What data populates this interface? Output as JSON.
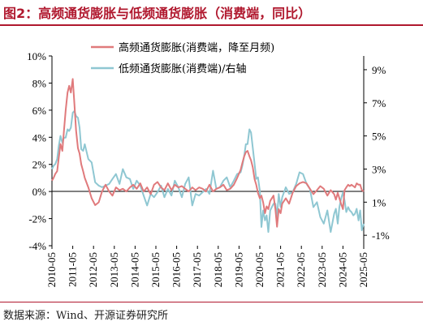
{
  "header": {
    "title": "图2：高频通货膨胀与低频通货膨胀（消费端，同比）"
  },
  "footer": {
    "source": "数据来源：Wind、开源证券研究所"
  },
  "colors": {
    "high_freq": "#e07a7c",
    "low_freq": "#8fc7d2",
    "accent": "#b0182e"
  },
  "chart_data": {
    "type": "line",
    "title": "",
    "xlabel": "",
    "ylabel": "",
    "x_tick_labels": [
      "2010-05",
      "2011-05",
      "2012-05",
      "2013-05",
      "2014-05",
      "2015-05",
      "2016-05",
      "2017-05",
      "2018-05",
      "2019-05",
      "2020-05",
      "2021-05",
      "2022-05",
      "2023-05",
      "2024-05",
      "2025-05"
    ],
    "left_axis": {
      "ticks": [
        10,
        8,
        6,
        4,
        2,
        0,
        -2,
        -4
      ],
      "labels": [
        "10%",
        "8%",
        "6%",
        "4%",
        "2%",
        "0%",
        "-2%",
        "-4%"
      ],
      "ylim": [
        -4,
        10
      ]
    },
    "right_axis": {
      "ticks": [
        9,
        7,
        5,
        3,
        1,
        -1
      ],
      "labels": [
        "9%",
        "7%",
        "5%",
        "3%",
        "1%",
        "-1%"
      ],
      "ylim": [
        -1.63,
        9.83
      ]
    },
    "legend": {
      "placement": "top-right"
    },
    "series": [
      {
        "name": "高频通货膨胀(消费端，降至月频)",
        "axis": "left",
        "x": [
          2010.42,
          2010.5,
          2010.58,
          2010.67,
          2010.75,
          2010.83,
          2010.92,
          2011.0,
          2011.08,
          2011.17,
          2011.25,
          2011.33,
          2011.42,
          2011.5,
          2011.58,
          2011.67,
          2011.75,
          2011.83,
          2011.92,
          2012.0,
          2012.17,
          2012.33,
          2012.5,
          2012.67,
          2012.83,
          2013.0,
          2013.17,
          2013.33,
          2013.5,
          2013.67,
          2013.83,
          2014.0,
          2014.17,
          2014.33,
          2014.5,
          2014.67,
          2014.83,
          2015.0,
          2015.17,
          2015.33,
          2015.5,
          2015.67,
          2015.83,
          2016.0,
          2016.17,
          2016.33,
          2016.5,
          2016.67,
          2016.83,
          2017.0,
          2017.17,
          2017.33,
          2017.5,
          2017.67,
          2017.83,
          2018.0,
          2018.17,
          2018.33,
          2018.5,
          2018.67,
          2018.83,
          2019.0,
          2019.17,
          2019.33,
          2019.5,
          2019.58,
          2019.67,
          2019.75,
          2019.83,
          2019.92,
          2020.0,
          2020.08,
          2020.17,
          2020.25,
          2020.33,
          2020.42,
          2020.5,
          2020.58,
          2020.67,
          2020.75,
          2020.83,
          2020.92,
          2021.0,
          2021.08,
          2021.17,
          2021.25,
          2021.33,
          2021.42,
          2021.5,
          2021.67,
          2021.83,
          2022.0,
          2022.17,
          2022.33,
          2022.5,
          2022.67,
          2022.83,
          2023.0,
          2023.17,
          2023.33,
          2023.5,
          2023.67,
          2023.83,
          2024.0,
          2024.08,
          2024.17,
          2024.25,
          2024.33,
          2024.42,
          2024.5,
          2024.58,
          2024.67,
          2024.75,
          2024.83,
          2024.92,
          2025.0,
          2025.08,
          2025.17,
          2025.25,
          2025.33,
          2025.42
        ],
        "values": [
          0.8,
          1.0,
          1.3,
          1.5,
          2.5,
          3.5,
          3.0,
          4.5,
          6.0,
          7.3,
          7.8,
          7.3,
          8.3,
          6.5,
          4.5,
          3.2,
          2.8,
          2.0,
          1.5,
          1.0,
          0.3,
          -0.5,
          -1.0,
          -0.8,
          0.0,
          0.5,
          0.0,
          -0.3,
          0.3,
          0.1,
          0.2,
          0.0,
          0.3,
          0.5,
          0.2,
          0.6,
          0.0,
          0.3,
          -0.2,
          0.5,
          0.7,
          0.3,
          0.1,
          0.6,
          0.1,
          0.5,
          0.3,
          0.4,
          0.2,
          0.0,
          0.3,
          0.1,
          0.3,
          0.2,
          0.0,
          0.5,
          0.0,
          0.2,
          0.3,
          0.5,
          0.1,
          0.2,
          0.5,
          1.0,
          1.6,
          2.1,
          2.6,
          2.9,
          3.0,
          2.6,
          2.3,
          1.8,
          0.9,
          0.5,
          -0.1,
          -0.5,
          -0.3,
          -0.8,
          -1.6,
          -1.1,
          -1.3,
          -0.7,
          -0.5,
          -0.3,
          -1.3,
          -2.6,
          -1.3,
          -1.6,
          -0.9,
          -0.5,
          -0.9,
          -0.1,
          0.4,
          0.6,
          0.7,
          0.6,
          0.2,
          -0.2,
          0.1,
          0.4,
          0.2,
          -0.3,
          0.1,
          -0.2,
          -0.6,
          -0.1,
          -0.5,
          -0.9,
          -1.3,
          0.1,
          0.3,
          0.5,
          0.4,
          0.5,
          0.4,
          0.3,
          0.6,
          0.5,
          0.5,
          0.1,
          0.0
        ]
      },
      {
        "name": "低频通货膨胀(消费端)/右轴",
        "axis": "right",
        "x": [
          2010.42,
          2010.5,
          2010.58,
          2010.67,
          2010.75,
          2010.83,
          2010.92,
          2011.0,
          2011.08,
          2011.17,
          2011.25,
          2011.33,
          2011.42,
          2011.5,
          2011.58,
          2011.67,
          2011.75,
          2011.83,
          2011.92,
          2012.0,
          2012.17,
          2012.33,
          2012.5,
          2012.67,
          2012.83,
          2013.0,
          2013.17,
          2013.33,
          2013.5,
          2013.67,
          2013.83,
          2014.0,
          2014.17,
          2014.33,
          2014.5,
          2014.67,
          2014.83,
          2015.0,
          2015.17,
          2015.33,
          2015.5,
          2015.67,
          2015.83,
          2016.0,
          2016.17,
          2016.33,
          2016.5,
          2016.67,
          2016.83,
          2017.0,
          2017.17,
          2017.33,
          2017.5,
          2017.67,
          2017.83,
          2018.0,
          2018.17,
          2018.33,
          2018.5,
          2018.67,
          2018.83,
          2019.0,
          2019.17,
          2019.33,
          2019.5,
          2019.58,
          2019.67,
          2019.75,
          2019.83,
          2019.92,
          2020.0,
          2020.08,
          2020.17,
          2020.25,
          2020.33,
          2020.42,
          2020.5,
          2020.58,
          2020.67,
          2020.75,
          2020.83,
          2020.92,
          2021.0,
          2021.08,
          2021.17,
          2021.25,
          2021.33,
          2021.42,
          2021.5,
          2021.67,
          2021.83,
          2022.0,
          2022.17,
          2022.33,
          2022.5,
          2022.67,
          2022.83,
          2023.0,
          2023.17,
          2023.33,
          2023.5,
          2023.67,
          2023.83,
          2024.0,
          2024.08,
          2024.17,
          2024.25,
          2024.33,
          2024.42,
          2024.5,
          2024.58,
          2024.67,
          2024.75,
          2024.83,
          2024.92,
          2025.0,
          2025.08,
          2025.17,
          2025.25,
          2025.33,
          2025.42
        ],
        "values": [
          3.0,
          3.2,
          3.3,
          3.6,
          4.4,
          5.0,
          4.6,
          4.9,
          4.9,
          5.4,
          5.3,
          5.5,
          6.4,
          6.5,
          6.2,
          6.1,
          5.5,
          4.2,
          4.1,
          4.5,
          3.6,
          3.4,
          2.2,
          2.0,
          1.9,
          2.0,
          2.1,
          2.4,
          2.7,
          2.1,
          3.0,
          2.5,
          2.4,
          1.8,
          2.3,
          2.0,
          1.4,
          0.8,
          1.5,
          1.3,
          1.6,
          2.0,
          1.3,
          1.8,
          1.4,
          2.3,
          1.9,
          1.3,
          2.1,
          2.5,
          0.8,
          1.5,
          1.4,
          1.6,
          1.8,
          1.5,
          2.9,
          1.8,
          1.9,
          2.3,
          2.5,
          1.9,
          2.3,
          2.7,
          2.8,
          3.2,
          3.8,
          4.5,
          4.5,
          5.4,
          5.2,
          4.3,
          3.3,
          2.4,
          2.5,
          1.7,
          -0.5,
          0.5,
          -0.1,
          0.2,
          -0.8,
          0.5,
          0.7,
          0.9,
          0.9,
          0.1,
          1.5,
          0.7,
          1.3,
          1.9,
          1.5,
          1.6,
          2.1,
          2.8,
          2.7,
          2.1,
          1.8,
          0.7,
          1.0,
          0.1,
          -0.3,
          0.5,
          -0.8,
          0.3,
          0.6,
          -0.3,
          0.7,
          1.2,
          1.6,
          1.1,
          0.4,
          0.7,
          0.5,
          0.4,
          0.2,
          0.3,
          0.6,
          -0.1,
          0.5,
          -0.7,
          -0.3
        ]
      }
    ]
  }
}
